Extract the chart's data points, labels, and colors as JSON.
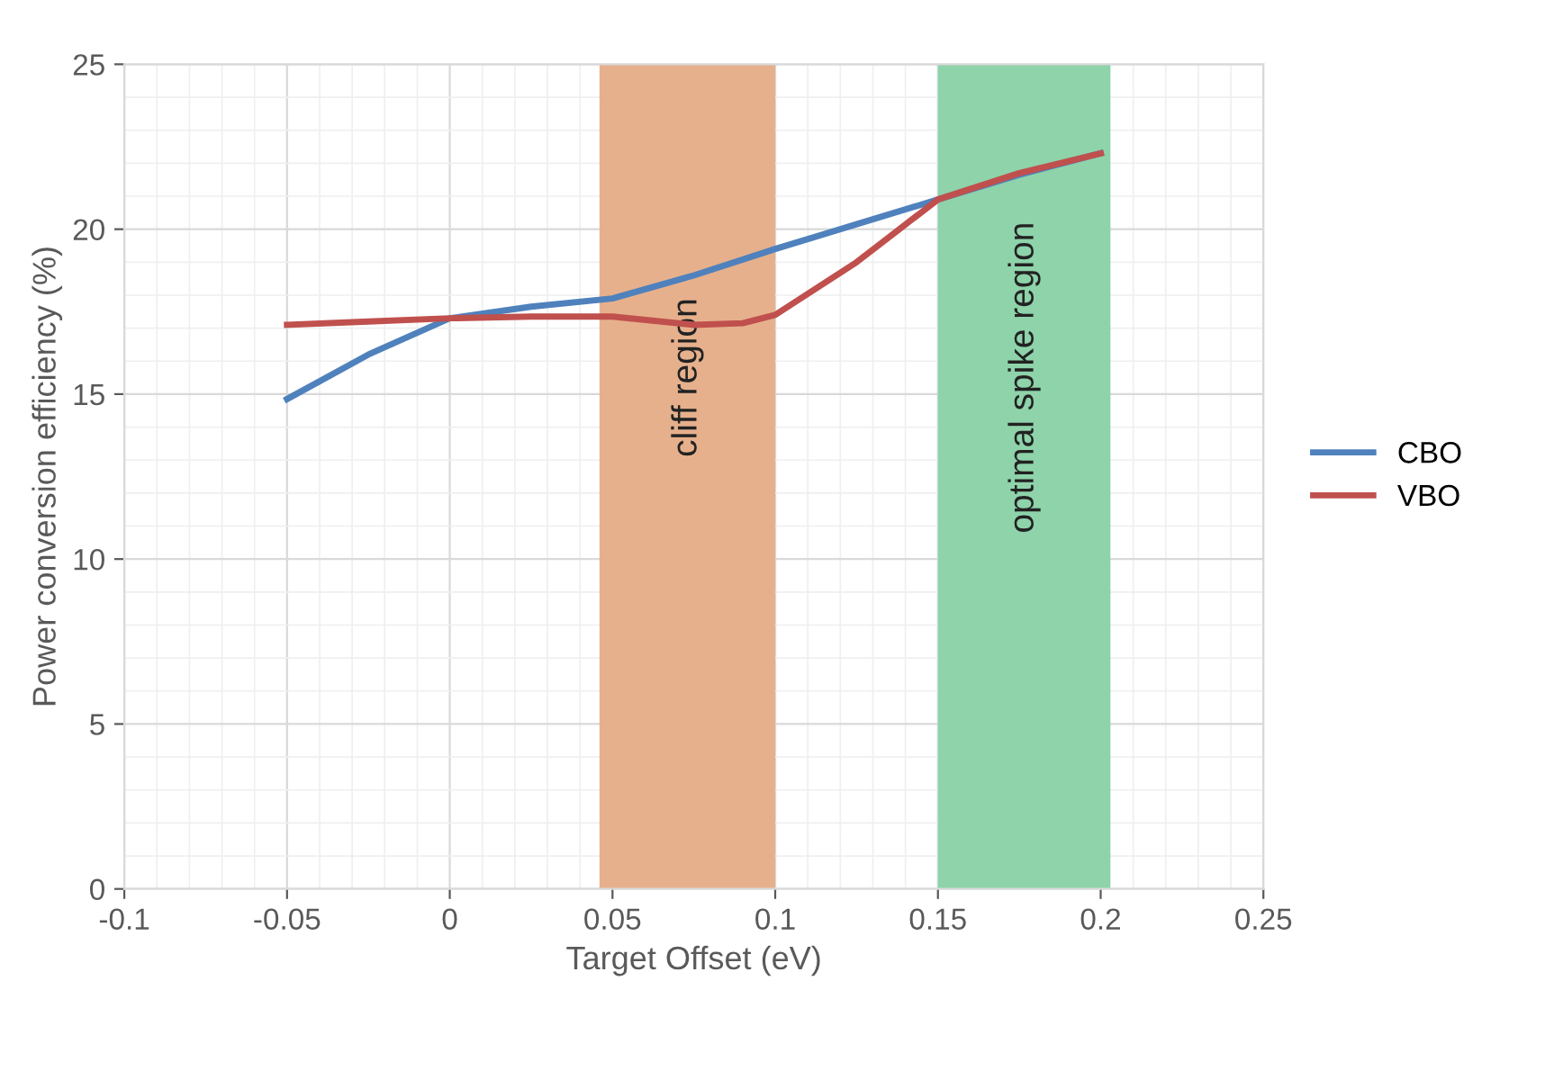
{
  "chart_data": {
    "type": "line",
    "xlabel": "Target Offset (eV)",
    "ylabel": "Power conversion efficiency (%)",
    "xlim": [
      -0.1,
      0.25
    ],
    "xticks": [
      -0.1,
      -0.05,
      0,
      0.05,
      0.1,
      0.15,
      0.2,
      0.25
    ],
    "ylim": [
      0,
      25
    ],
    "yticks": [
      0,
      5,
      10,
      15,
      20,
      25
    ],
    "grid": true,
    "legend": "right",
    "line_style": "solid",
    "marker": "none",
    "bands": [
      {
        "axis": "x",
        "from": 0.046,
        "to": 0.1,
        "label": "cliff region",
        "color": "#e6b08c"
      },
      {
        "axis": "x",
        "from": 0.15,
        "to": 0.203,
        "label": "optimal spike region",
        "color": "#8ed3aa"
      }
    ],
    "series": [
      {
        "name": "CBO",
        "color": "#4f81bd",
        "x": [
          -0.05,
          -0.025,
          0,
          0.025,
          0.05,
          0.075,
          0.1,
          0.125,
          0.15,
          0.175,
          0.2
        ],
        "values": [
          14.85,
          16.2,
          17.3,
          17.65,
          17.9,
          18.6,
          19.4,
          20.15,
          20.9,
          21.65,
          22.3
        ]
      },
      {
        "name": "VBO",
        "color": "#c0504d",
        "x": [
          -0.05,
          -0.025,
          0,
          0.025,
          0.05,
          0.075,
          0.09,
          0.1,
          0.125,
          0.15,
          0.175,
          0.2
        ],
        "values": [
          17.1,
          17.2,
          17.3,
          17.35,
          17.35,
          17.1,
          17.15,
          17.4,
          19.0,
          20.9,
          21.7,
          22.3
        ]
      }
    ]
  }
}
